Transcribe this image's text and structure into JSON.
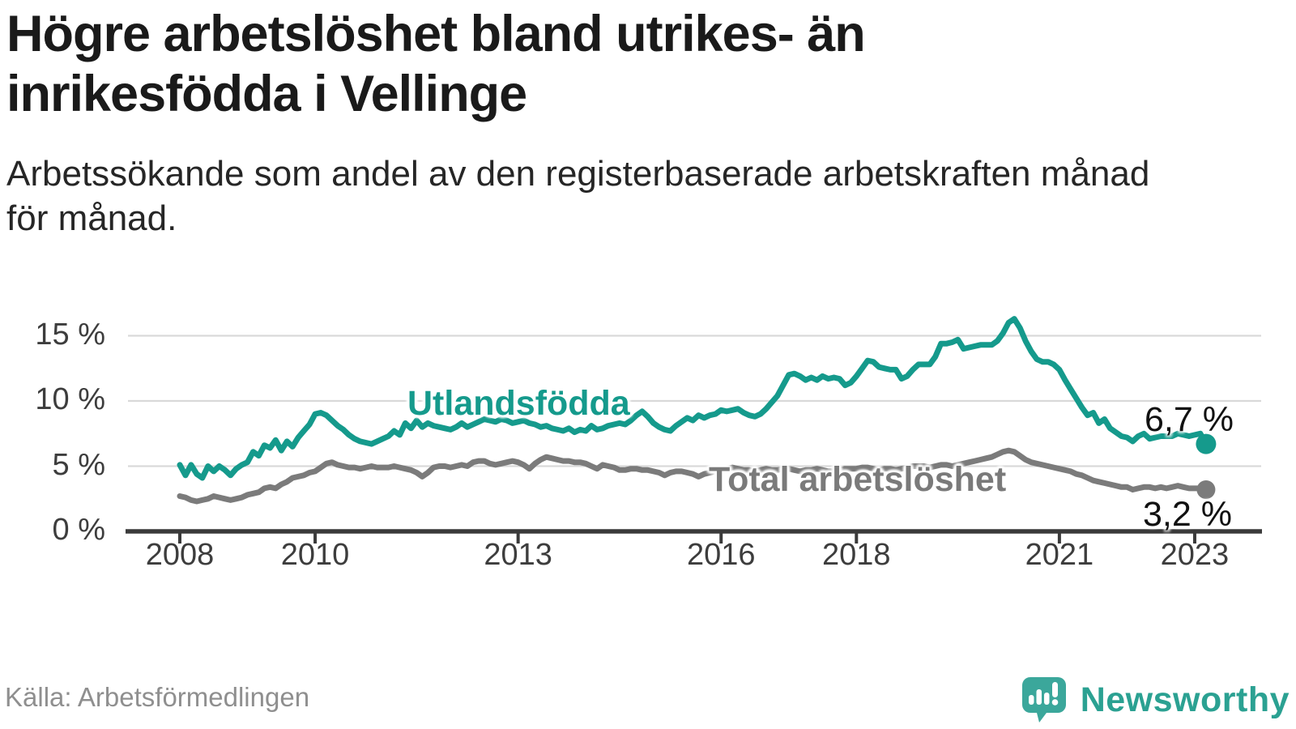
{
  "title": "Högre arbetslöshet bland utrikes- än inrikesfödda i Vellinge",
  "title_lines": [
    "Högre arbetslöshet bland utrikes- än",
    "inrikesfödda i Vellinge"
  ],
  "subtitle": "Arbetssökande som andel av den registerbaserade arbetskraften månad för månad.",
  "subtitle_lines": [
    "Arbetssökande som andel av den registerbaserade arbetskraften månad",
    "för månad."
  ],
  "source": "Källa: Arbetsförmedlingen",
  "branding": {
    "name": "Newsworthy",
    "logo_icon": "speech-bubble-bar-chart-exclamation",
    "logo_color": "#3ba79b",
    "wordmark_color": "#2ba192"
  },
  "colors": {
    "background": "#ffffff",
    "title_text": "#1a1a1a",
    "subtitle_text": "#262626",
    "axis_text": "#3d3d3d",
    "axis_line": "#3a3a3a",
    "gridline": "#d9d9d9",
    "source_text": "#8f8f8f",
    "series_utlandsfodda": "#159a8c",
    "series_total": "#7b7b7b"
  },
  "chart_data": {
    "type": "line",
    "title": "",
    "xlabel": "",
    "ylabel": "",
    "grid": "horizontal",
    "legend_position": "inline-labels",
    "x_unit": "monthly",
    "x_start": "2008-01",
    "x_end": "2023-03",
    "xlim_years": [
      2007.2,
      2024.0
    ],
    "ylim": [
      0,
      17.5
    ],
    "yticks": [
      {
        "value": 0,
        "label": "0 %"
      },
      {
        "value": 5,
        "label": "5 %"
      },
      {
        "value": 10,
        "label": "10 %"
      },
      {
        "value": 15,
        "label": "15 %"
      }
    ],
    "xticks": [
      {
        "year": 2008,
        "label": "2008"
      },
      {
        "year": 2010,
        "label": "2010"
      },
      {
        "year": 2013,
        "label": "2013"
      },
      {
        "year": 2016,
        "label": "2016"
      },
      {
        "year": 2018,
        "label": "2018"
      },
      {
        "year": 2021,
        "label": "2021"
      },
      {
        "year": 2023,
        "label": "2023"
      }
    ],
    "series": [
      {
        "name": "Utlandsfödda",
        "color": "#159a8c",
        "end_label": "6,7 %",
        "end_value": 6.7,
        "values": [
          5.1,
          4.3,
          5.1,
          4.4,
          4.1,
          5.0,
          4.6,
          5.0,
          4.7,
          4.3,
          4.8,
          5.1,
          5.3,
          6.1,
          5.8,
          6.6,
          6.4,
          7.0,
          6.2,
          6.9,
          6.5,
          7.2,
          7.7,
          8.2,
          9.0,
          9.1,
          8.9,
          8.5,
          8.1,
          7.8,
          7.4,
          7.1,
          6.9,
          6.8,
          6.7,
          6.9,
          7.1,
          7.3,
          7.7,
          7.4,
          8.3,
          7.9,
          8.5,
          8.0,
          8.3,
          8.1,
          8.0,
          7.9,
          7.8,
          8.0,
          8.3,
          8.0,
          8.2,
          8.4,
          8.6,
          8.5,
          8.4,
          8.6,
          8.5,
          8.3,
          8.4,
          8.5,
          8.3,
          8.2,
          8.0,
          8.1,
          7.9,
          7.8,
          7.7,
          7.9,
          7.6,
          7.8,
          7.7,
          8.1,
          7.8,
          7.9,
          8.1,
          8.2,
          8.3,
          8.2,
          8.5,
          8.9,
          9.2,
          8.8,
          8.3,
          8.0,
          7.8,
          7.7,
          8.1,
          8.4,
          8.7,
          8.5,
          8.9,
          8.7,
          8.9,
          9.0,
          9.3,
          9.2,
          9.3,
          9.4,
          9.1,
          8.9,
          8.8,
          9.0,
          9.4,
          9.9,
          10.4,
          11.2,
          12.0,
          12.1,
          11.9,
          11.6,
          11.8,
          11.6,
          11.9,
          11.7,
          11.8,
          11.7,
          11.2,
          11.4,
          11.9,
          12.5,
          13.1,
          13.0,
          12.6,
          12.5,
          12.4,
          12.4,
          11.7,
          11.9,
          12.4,
          12.8,
          12.8,
          12.8,
          13.4,
          14.4,
          14.4,
          14.5,
          14.7,
          14.0,
          14.1,
          14.2,
          14.3,
          14.3,
          14.3,
          14.6,
          15.2,
          16.0,
          16.3,
          15.6,
          14.6,
          13.8,
          13.2,
          13.0,
          13.0,
          12.8,
          12.4,
          11.6,
          10.9,
          10.2,
          9.5,
          8.9,
          9.1,
          8.3,
          8.6,
          7.9,
          7.6,
          7.3,
          7.2,
          6.9,
          7.3,
          7.5,
          7.1,
          7.2,
          7.3,
          7.3,
          7.3,
          7.5,
          7.4,
          7.3,
          7.4,
          7.5,
          6.7
        ]
      },
      {
        "name": "Total arbetslöshet",
        "color": "#7b7b7b",
        "end_label": "3,2 %",
        "end_value": 3.2,
        "values": [
          2.7,
          2.6,
          2.4,
          2.3,
          2.4,
          2.5,
          2.7,
          2.6,
          2.5,
          2.4,
          2.5,
          2.6,
          2.8,
          2.9,
          3.0,
          3.3,
          3.4,
          3.3,
          3.6,
          3.8,
          4.1,
          4.2,
          4.3,
          4.5,
          4.6,
          4.9,
          5.2,
          5.3,
          5.1,
          5.0,
          4.9,
          4.9,
          4.8,
          4.9,
          5.0,
          4.9,
          4.9,
          4.9,
          5.0,
          4.9,
          4.8,
          4.7,
          4.5,
          4.2,
          4.5,
          4.9,
          5.0,
          5.0,
          4.9,
          5.0,
          5.1,
          5.0,
          5.3,
          5.4,
          5.4,
          5.2,
          5.1,
          5.2,
          5.3,
          5.4,
          5.3,
          5.1,
          4.8,
          5.2,
          5.5,
          5.7,
          5.6,
          5.5,
          5.4,
          5.4,
          5.3,
          5.3,
          5.2,
          5.0,
          4.8,
          5.1,
          5.0,
          4.9,
          4.7,
          4.7,
          4.8,
          4.8,
          4.7,
          4.7,
          4.6,
          4.5,
          4.3,
          4.5,
          4.6,
          4.6,
          4.5,
          4.4,
          4.2,
          4.4,
          4.5,
          4.6,
          4.7,
          4.8,
          4.9,
          4.8,
          4.7,
          4.7,
          4.6,
          4.7,
          4.8,
          4.7,
          4.7,
          4.8,
          4.8,
          4.7,
          4.6,
          4.7,
          4.7,
          4.8,
          4.7,
          4.6,
          4.6,
          4.7,
          4.8,
          4.8,
          4.8,
          4.9,
          4.9,
          4.8,
          4.7,
          4.8,
          4.8,
          4.7,
          4.8,
          4.9,
          5.0,
          5.0,
          5.0,
          4.9,
          5.0,
          5.1,
          5.1,
          5.0,
          5.1,
          5.2,
          5.3,
          5.4,
          5.5,
          5.6,
          5.7,
          5.9,
          6.1,
          6.2,
          6.1,
          5.8,
          5.5,
          5.3,
          5.2,
          5.1,
          5.0,
          4.9,
          4.8,
          4.7,
          4.6,
          4.4,
          4.3,
          4.1,
          3.9,
          3.8,
          3.7,
          3.6,
          3.5,
          3.4,
          3.4,
          3.2,
          3.3,
          3.4,
          3.4,
          3.3,
          3.4,
          3.3,
          3.4,
          3.5,
          3.4,
          3.3,
          3.3,
          3.3,
          3.2
        ]
      }
    ]
  }
}
